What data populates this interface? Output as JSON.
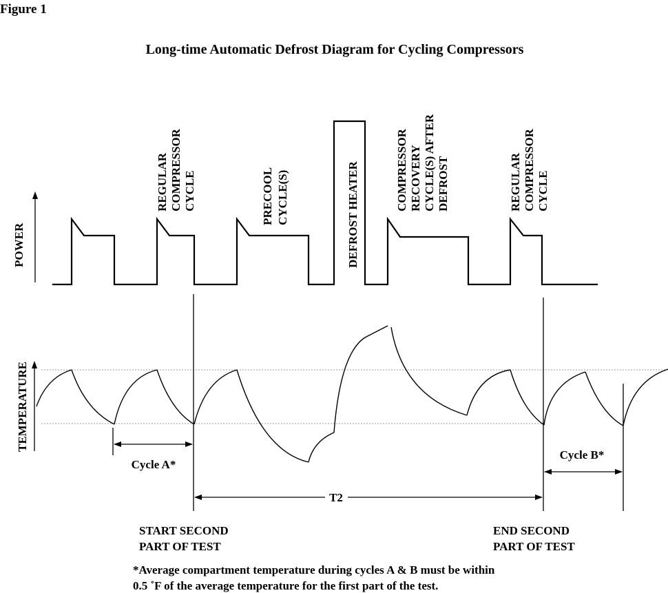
{
  "figure_label": "Figure 1",
  "title": "Long-time Automatic Defrost Diagram for Cycling Compressors",
  "power_axis_label": "POWER",
  "temperature_axis_label": "TEMPERATURE",
  "phase_labels": [
    {
      "lines": [
        "REGULAR",
        "COMPRESSOR",
        "CYCLE"
      ]
    },
    {
      "lines": [
        "PRECOOL",
        "CYCLE(S)"
      ]
    },
    {
      "lines": [
        "DEFROST HEATER"
      ]
    },
    {
      "lines": [
        "COMPRESSOR",
        "RECOVERY",
        "CYCLE(S) AFTER",
        "DEFROST"
      ]
    },
    {
      "lines": [
        "REGULAR",
        "COMPRESSOR",
        "CYCLE"
      ]
    }
  ],
  "intervals": {
    "cycle_a": "Cycle A*",
    "t2": "T2",
    "cycle_b": "Cycle B*"
  },
  "markers": {
    "start_lines": [
      "START SECOND",
      "PART OF TEST"
    ],
    "end_lines": [
      "END SECOND",
      "PART OF TEST"
    ]
  },
  "footnote": {
    "line1": "*Average compartment temperature during cycles A & B must be within",
    "line2": "0.5 ˚F  of  the average temperature for the first part of the test."
  }
}
